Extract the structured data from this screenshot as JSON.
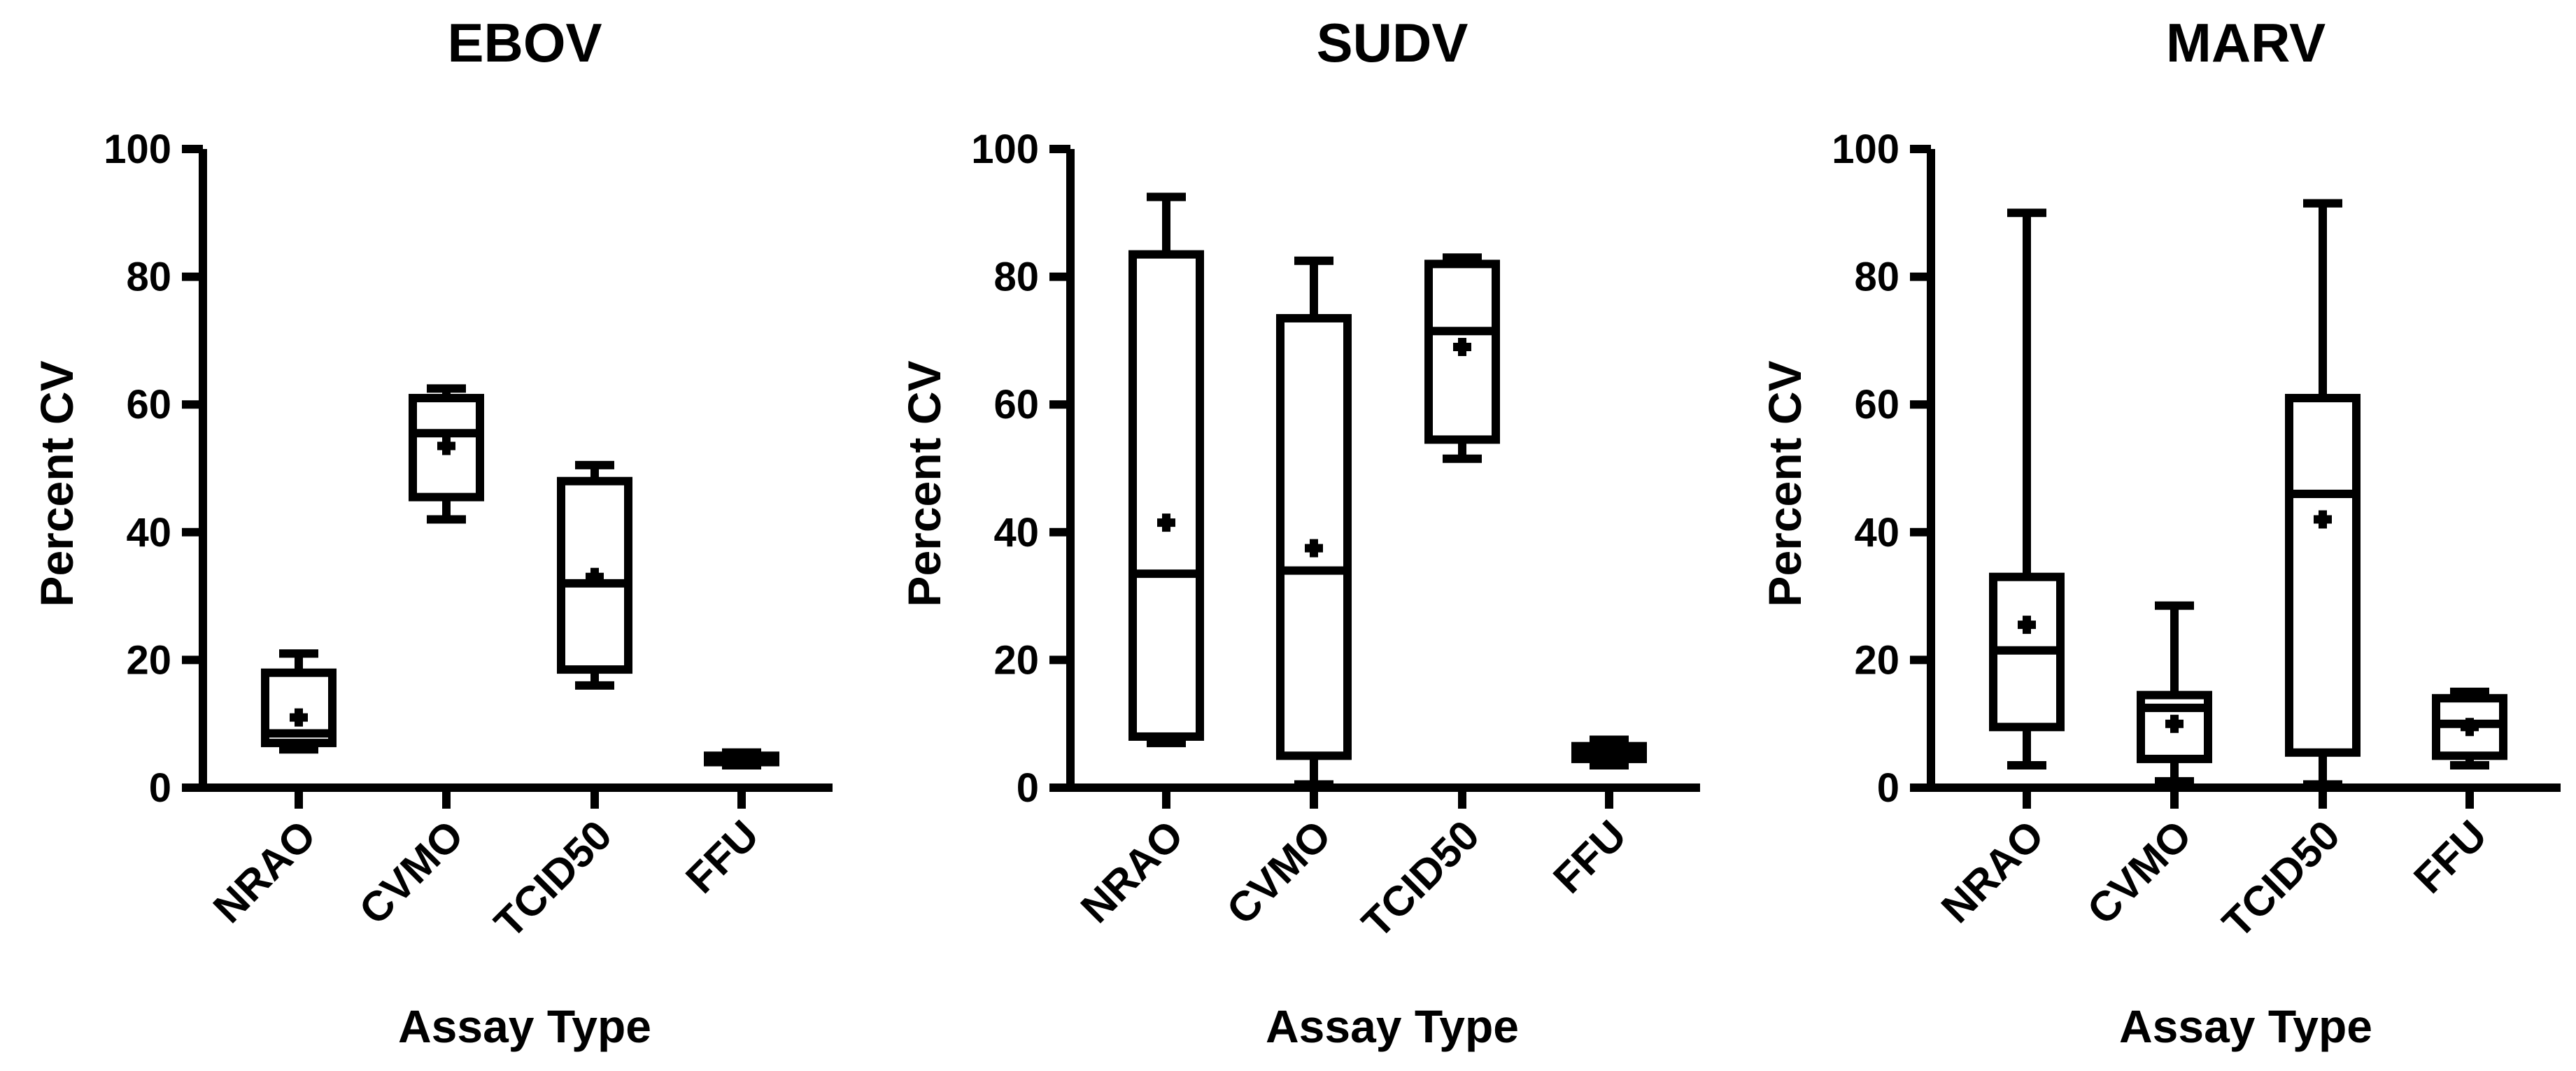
{
  "chart_data": [
    {
      "type": "box",
      "title": "EBOV",
      "xlabel": "Assay Type",
      "ylabel": "Percent CV",
      "ylim": [
        0,
        100
      ],
      "yticks": [
        "0",
        "20",
        "40",
        "60",
        "80",
        "100"
      ],
      "categories": [
        "NRAO",
        "CVMO",
        "TCID50",
        "FFU"
      ],
      "boxes": [
        {
          "category": "NRAO",
          "min": 6,
          "q1": 7,
          "median": 8.5,
          "q3": 18,
          "max": 21,
          "mean": 11
        },
        {
          "category": "CVMO",
          "min": 42,
          "q1": 45.5,
          "median": 55.5,
          "q3": 61,
          "max": 62.5,
          "mean": 53.5
        },
        {
          "category": "TCID50",
          "min": 16,
          "q1": 18.5,
          "median": 32,
          "q3": 48,
          "max": 50.5,
          "mean": 33
        },
        {
          "category": "FFU",
          "min": 3.5,
          "q1": 4,
          "median": 4.5,
          "q3": 5,
          "max": 5.5,
          "mean": 4.5
        }
      ]
    },
    {
      "type": "box",
      "title": "SUDV",
      "xlabel": "Assay Type",
      "ylabel": "Percent CV",
      "ylim": [
        0,
        100
      ],
      "yticks": [
        "0",
        "20",
        "40",
        "60",
        "80",
        "100"
      ],
      "categories": [
        "NRAO",
        "CVMO",
        "TCID50",
        "FFU"
      ],
      "boxes": [
        {
          "category": "NRAO",
          "min": 7,
          "q1": 8,
          "median": 33.5,
          "q3": 83.5,
          "max": 92.5,
          "mean": 41.5
        },
        {
          "category": "CVMO",
          "min": 0.5,
          "q1": 5,
          "median": 34,
          "q3": 73.5,
          "max": 82.5,
          "mean": 37.5
        },
        {
          "category": "TCID50",
          "min": 51.5,
          "q1": 54.5,
          "median": 71.5,
          "q3": 82,
          "max": 83,
          "mean": 69
        },
        {
          "category": "FFU",
          "min": 3.5,
          "q1": 4.5,
          "median": 5.5,
          "q3": 6.5,
          "max": 7.5,
          "mean": 5.5
        }
      ]
    },
    {
      "type": "box",
      "title": "MARV",
      "xlabel": "Assay Type",
      "ylabel": "Percent CV",
      "ylim": [
        0,
        100
      ],
      "yticks": [
        "0",
        "20",
        "40",
        "60",
        "80",
        "100"
      ],
      "categories": [
        "NRAO",
        "CVMO",
        "TCID50",
        "FFU"
      ],
      "boxes": [
        {
          "category": "NRAO",
          "min": 3.5,
          "q1": 9.5,
          "median": 21.5,
          "q3": 33,
          "max": 90,
          "mean": 25.5
        },
        {
          "category": "CVMO",
          "min": 1,
          "q1": 4.5,
          "median": 12.5,
          "q3": 14.5,
          "max": 28.5,
          "mean": 10
        },
        {
          "category": "TCID50",
          "min": 0.5,
          "q1": 5.5,
          "median": 46,
          "q3": 61,
          "max": 91.5,
          "mean": 42
        },
        {
          "category": "FFU",
          "min": 3.5,
          "q1": 5,
          "median": 10,
          "q3": 14,
          "max": 15,
          "mean": 9.5
        }
      ]
    }
  ]
}
